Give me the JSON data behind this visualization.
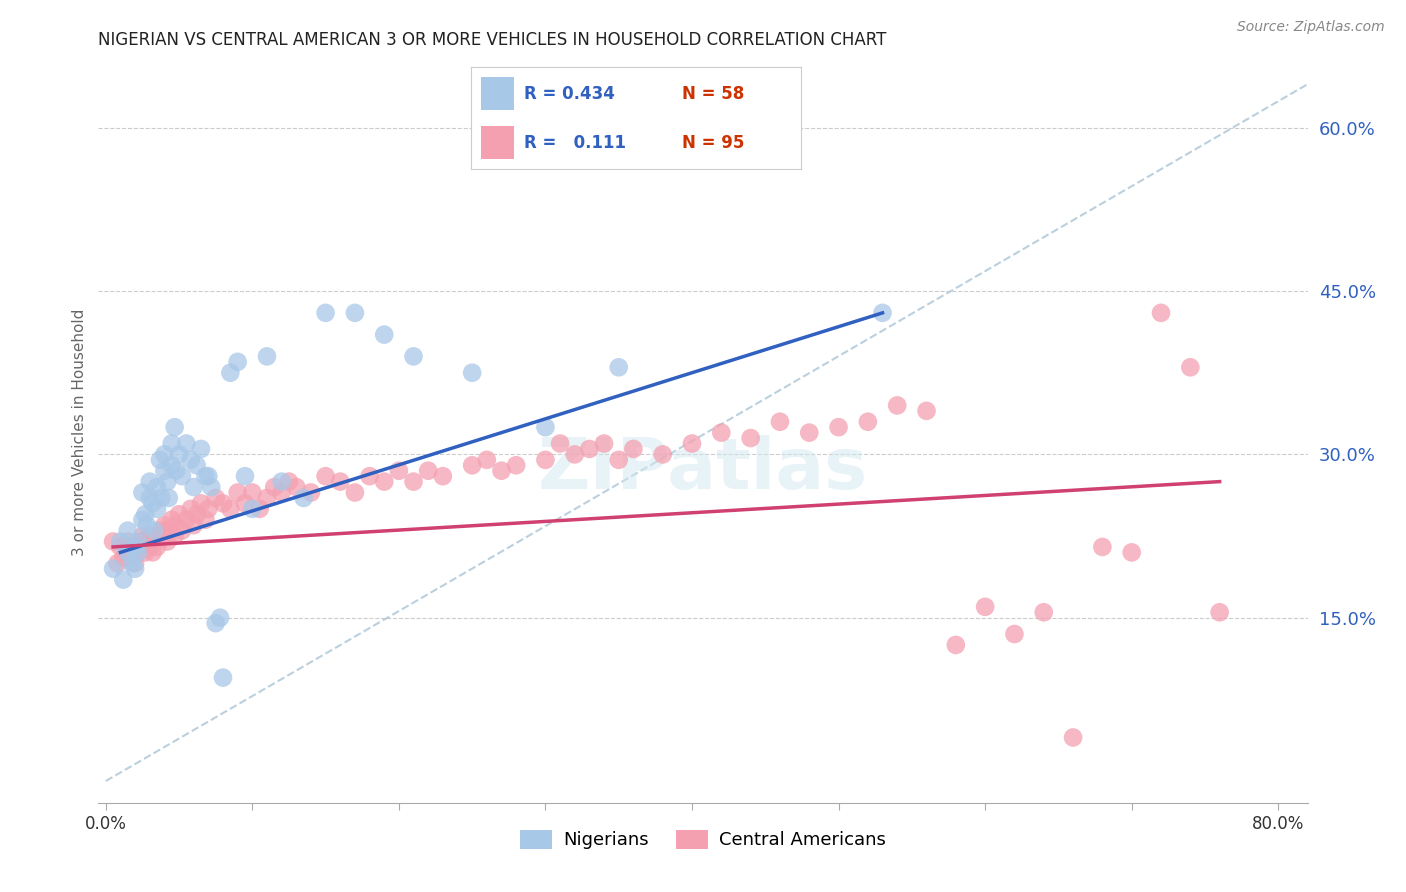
{
  "title": "NIGERIAN VS CENTRAL AMERICAN 3 OR MORE VEHICLES IN HOUSEHOLD CORRELATION CHART",
  "source": "Source: ZipAtlas.com",
  "ylabel": "3 or more Vehicles in Household",
  "ylim": [
    -0.02,
    0.66
  ],
  "xlim": [
    -0.005,
    0.82
  ],
  "ytick_positions": [
    0.15,
    0.3,
    0.45,
    0.6
  ],
  "ytick_labels": [
    "15.0%",
    "30.0%",
    "45.0%",
    "60.0%"
  ],
  "xtick_positions": [
    0.0,
    0.1,
    0.2,
    0.3,
    0.4,
    0.5,
    0.6,
    0.7,
    0.8
  ],
  "xtick_labels": [
    "0.0%",
    "",
    "",
    "",
    "",
    "",
    "",
    "",
    "80.0%"
  ],
  "grid_color": "#cccccc",
  "background_color": "#ffffff",
  "nigerian_color": "#a8c8e8",
  "central_american_color": "#f4a0b0",
  "nigerian_line_color": "#3060c0",
  "central_american_line_color": "#d04070",
  "diagonal_line_color": "#b0c8d8",
  "legend_r_nigerian": "R = 0.434",
  "legend_n_nigerian": "N = 58",
  "legend_r_central": "R =   0.111",
  "legend_n_central": "N = 95",
  "legend_nigerian_label": "Nigerians",
  "legend_central_american_label": "Central Americans",
  "nigerian_x": [
    0.005,
    0.01,
    0.012,
    0.015,
    0.015,
    0.018,
    0.02,
    0.02,
    0.022,
    0.022,
    0.025,
    0.025,
    0.027,
    0.028,
    0.03,
    0.03,
    0.032,
    0.033,
    0.035,
    0.035,
    0.037,
    0.038,
    0.04,
    0.04,
    0.042,
    0.043,
    0.045,
    0.045,
    0.047,
    0.048,
    0.05,
    0.052,
    0.055,
    0.058,
    0.06,
    0.062,
    0.065,
    0.068,
    0.07,
    0.072,
    0.075,
    0.078,
    0.08,
    0.085,
    0.09,
    0.095,
    0.1,
    0.11,
    0.12,
    0.135,
    0.15,
    0.17,
    0.19,
    0.21,
    0.25,
    0.3,
    0.35,
    0.53
  ],
  "nigerian_y": [
    0.195,
    0.22,
    0.185,
    0.23,
    0.21,
    0.2,
    0.215,
    0.195,
    0.22,
    0.21,
    0.24,
    0.265,
    0.245,
    0.235,
    0.26,
    0.275,
    0.255,
    0.23,
    0.27,
    0.25,
    0.295,
    0.26,
    0.285,
    0.3,
    0.275,
    0.26,
    0.29,
    0.31,
    0.325,
    0.285,
    0.3,
    0.28,
    0.31,
    0.295,
    0.27,
    0.29,
    0.305,
    0.28,
    0.28,
    0.27,
    0.145,
    0.15,
    0.095,
    0.375,
    0.385,
    0.28,
    0.25,
    0.39,
    0.275,
    0.26,
    0.43,
    0.43,
    0.41,
    0.39,
    0.375,
    0.325,
    0.38,
    0.43
  ],
  "central_x": [
    0.005,
    0.008,
    0.01,
    0.012,
    0.015,
    0.015,
    0.018,
    0.02,
    0.02,
    0.022,
    0.025,
    0.025,
    0.027,
    0.028,
    0.03,
    0.03,
    0.032,
    0.033,
    0.035,
    0.035,
    0.038,
    0.04,
    0.04,
    0.042,
    0.043,
    0.045,
    0.047,
    0.048,
    0.05,
    0.052,
    0.055,
    0.058,
    0.06,
    0.062,
    0.065,
    0.068,
    0.07,
    0.075,
    0.08,
    0.085,
    0.09,
    0.095,
    0.1,
    0.105,
    0.11,
    0.115,
    0.12,
    0.125,
    0.13,
    0.14,
    0.15,
    0.16,
    0.17,
    0.18,
    0.19,
    0.2,
    0.21,
    0.22,
    0.23,
    0.25,
    0.26,
    0.27,
    0.28,
    0.3,
    0.31,
    0.32,
    0.33,
    0.34,
    0.35,
    0.36,
    0.38,
    0.4,
    0.42,
    0.44,
    0.46,
    0.48,
    0.5,
    0.52,
    0.54,
    0.56,
    0.58,
    0.6,
    0.62,
    0.64,
    0.66,
    0.68,
    0.7,
    0.72,
    0.74,
    0.76,
    0.048,
    0.055,
    0.22,
    0.27,
    0.58
  ],
  "central_y": [
    0.22,
    0.2,
    0.215,
    0.205,
    0.22,
    0.21,
    0.215,
    0.2,
    0.215,
    0.21,
    0.22,
    0.225,
    0.21,
    0.22,
    0.215,
    0.225,
    0.21,
    0.22,
    0.225,
    0.215,
    0.23,
    0.225,
    0.235,
    0.22,
    0.23,
    0.24,
    0.225,
    0.235,
    0.245,
    0.23,
    0.24,
    0.25,
    0.235,
    0.245,
    0.255,
    0.24,
    0.25,
    0.26,
    0.255,
    0.25,
    0.265,
    0.255,
    0.265,
    0.25,
    0.26,
    0.27,
    0.265,
    0.275,
    0.27,
    0.265,
    0.28,
    0.275,
    0.265,
    0.28,
    0.275,
    0.285,
    0.275,
    0.285,
    0.28,
    0.29,
    0.295,
    0.285,
    0.29,
    0.295,
    0.31,
    0.3,
    0.305,
    0.31,
    0.295,
    0.305,
    0.3,
    0.31,
    0.32,
    0.315,
    0.33,
    0.32,
    0.325,
    0.33,
    0.345,
    0.34,
    0.125,
    0.16,
    0.135,
    0.155,
    0.04,
    0.215,
    0.21,
    0.43,
    0.38,
    0.155
  ]
}
